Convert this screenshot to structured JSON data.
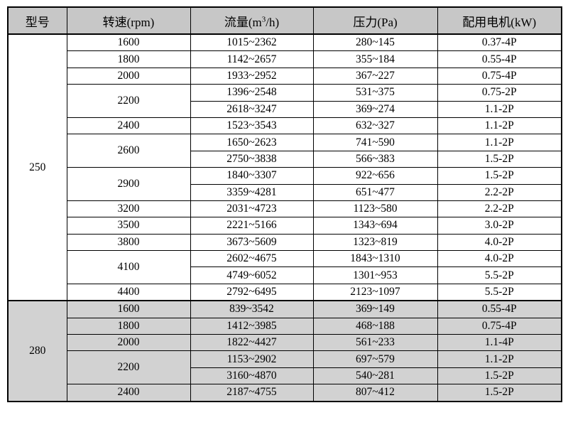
{
  "colors": {
    "header_bg": "#c7c7c7",
    "shaded_section_bg": "#d2d2d2",
    "border": "#000000",
    "page_bg": "#ffffff"
  },
  "table": {
    "headers": [
      {
        "key": "model",
        "text": "型号"
      },
      {
        "key": "speed",
        "text": "转速(rpm)"
      },
      {
        "key": "flow",
        "text": "流量(m",
        "sup": "3",
        "tail": "/h)"
      },
      {
        "key": "pressure",
        "text": "压力(Pa)"
      },
      {
        "key": "motor",
        "text": "配用电机(kW)"
      }
    ],
    "sections": [
      {
        "model": "250",
        "shaded": false,
        "rows": [
          {
            "speed": "1600",
            "entries": [
              [
                "1015~2362",
                "280~145",
                "0.37-4P"
              ]
            ]
          },
          {
            "speed": "1800",
            "entries": [
              [
                "1142~2657",
                "355~184",
                "0.55-4P"
              ]
            ]
          },
          {
            "speed": "2000",
            "entries": [
              [
                "1933~2952",
                "367~227",
                "0.75-4P"
              ]
            ]
          },
          {
            "speed": "2200",
            "entries": [
              [
                "1396~2548",
                "531~375",
                "0.75-2P"
              ],
              [
                "2618~3247",
                "369~274",
                "1.1-2P"
              ]
            ]
          },
          {
            "speed": "2400",
            "entries": [
              [
                "1523~3543",
                "632~327",
                "1.1-2P"
              ]
            ]
          },
          {
            "speed": "2600",
            "entries": [
              [
                "1650~2623",
                "741~590",
                "1.1-2P"
              ],
              [
                "2750~3838",
                "566~383",
                "1.5-2P"
              ]
            ]
          },
          {
            "speed": "2900",
            "entries": [
              [
                "1840~3307",
                "922~656",
                "1.5-2P"
              ],
              [
                "3359~4281",
                "651~477",
                "2.2-2P"
              ]
            ]
          },
          {
            "speed": "3200",
            "entries": [
              [
                "2031~4723",
                "1123~580",
                "2.2-2P"
              ]
            ]
          },
          {
            "speed": "3500",
            "entries": [
              [
                "2221~5166",
                "1343~694",
                "3.0-2P"
              ]
            ]
          },
          {
            "speed": "3800",
            "entries": [
              [
                "3673~5609",
                "1323~819",
                "4.0-2P"
              ]
            ]
          },
          {
            "speed": "4100",
            "entries": [
              [
                "2602~4675",
                "1843~1310",
                "4.0-2P"
              ],
              [
                "4749~6052",
                "1301~953",
                "5.5-2P"
              ]
            ]
          },
          {
            "speed": "4400",
            "entries": [
              [
                "2792~6495",
                "2123~1097",
                "5.5-2P"
              ]
            ]
          }
        ]
      },
      {
        "model": "280",
        "shaded": true,
        "rows": [
          {
            "speed": "1600",
            "entries": [
              [
                "839~3542",
                "369~149",
                "0.55-4P"
              ]
            ]
          },
          {
            "speed": "1800",
            "entries": [
              [
                "1412~3985",
                "468~188",
                "0.75-4P"
              ]
            ]
          },
          {
            "speed": "2000",
            "entries": [
              [
                "1822~4427",
                "561~233",
                "1.1-4P"
              ]
            ]
          },
          {
            "speed": "2200",
            "entries": [
              [
                "1153~2902",
                "697~579",
                "1.1-2P"
              ],
              [
                "3160~4870",
                "540~281",
                "1.5-2P"
              ]
            ]
          },
          {
            "speed": "2400",
            "entries": [
              [
                "2187~4755",
                "807~412",
                "1.5-2P"
              ]
            ]
          }
        ]
      }
    ]
  }
}
